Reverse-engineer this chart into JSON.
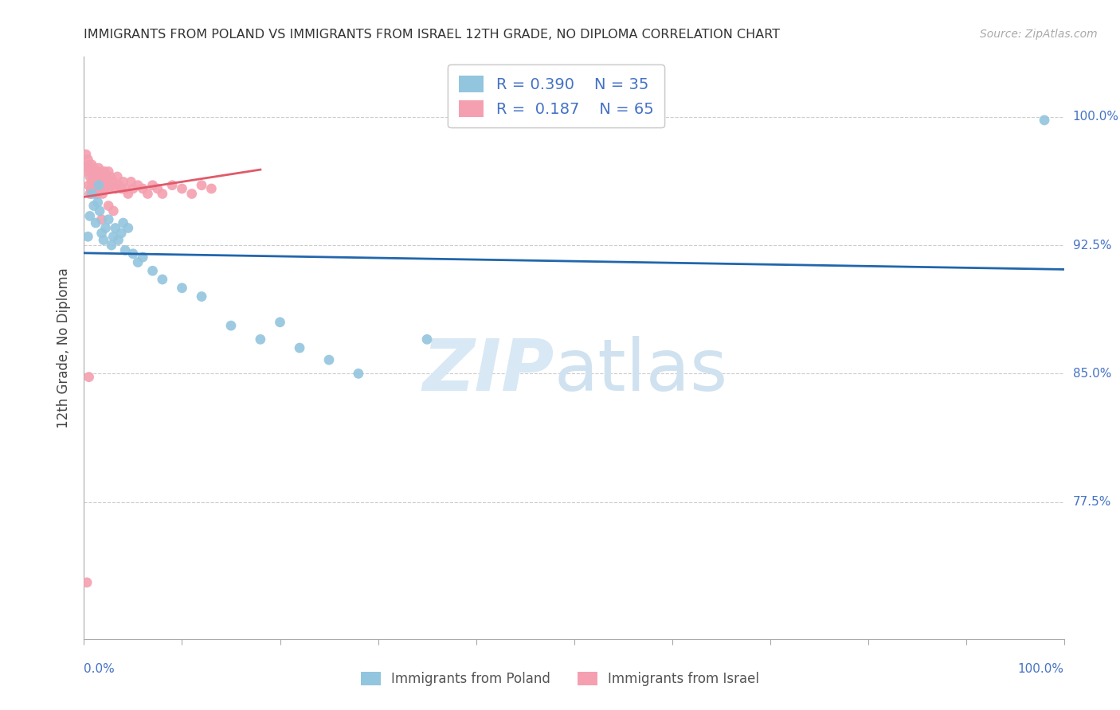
{
  "title": "IMMIGRANTS FROM POLAND VS IMMIGRANTS FROM ISRAEL 12TH GRADE, NO DIPLOMA CORRELATION CHART",
  "source": "Source: ZipAtlas.com",
  "ylabel": "12th Grade, No Diploma",
  "ytick_labels": [
    "100.0%",
    "92.5%",
    "85.0%",
    "77.5%"
  ],
  "ytick_values": [
    1.0,
    0.925,
    0.85,
    0.775
  ],
  "xlim": [
    0.0,
    1.0
  ],
  "ylim": [
    0.695,
    1.035
  ],
  "legend_R_blue": "0.390",
  "legend_N_blue": "35",
  "legend_R_pink": "0.187",
  "legend_N_pink": "65",
  "blue_scatter_color": "#92c5de",
  "pink_scatter_color": "#f4a0b0",
  "blue_line_color": "#2166ac",
  "pink_line_color": "#e05a6a",
  "right_axis_color": "#4472c4",
  "watermark_zip_color": "#d0dff0",
  "watermark_atlas_color": "#c8d8e8",
  "poland_x": [
    0.004,
    0.006,
    0.008,
    0.01,
    0.012,
    0.014,
    0.015,
    0.016,
    0.018,
    0.02,
    0.022,
    0.025,
    0.028,
    0.03,
    0.032,
    0.035,
    0.038,
    0.04,
    0.042,
    0.045,
    0.05,
    0.055,
    0.06,
    0.07,
    0.08,
    0.1,
    0.12,
    0.15,
    0.18,
    0.2,
    0.22,
    0.25,
    0.28,
    0.35,
    0.98
  ],
  "poland_y": [
    0.93,
    0.942,
    0.955,
    0.948,
    0.938,
    0.95,
    0.96,
    0.945,
    0.932,
    0.928,
    0.935,
    0.94,
    0.925,
    0.93,
    0.935,
    0.928,
    0.932,
    0.938,
    0.922,
    0.935,
    0.92,
    0.915,
    0.918,
    0.91,
    0.905,
    0.9,
    0.895,
    0.878,
    0.87,
    0.88,
    0.865,
    0.858,
    0.85,
    0.87,
    0.998
  ],
  "israel_x": [
    0.002,
    0.003,
    0.004,
    0.004,
    0.005,
    0.005,
    0.006,
    0.006,
    0.007,
    0.007,
    0.008,
    0.008,
    0.009,
    0.009,
    0.01,
    0.01,
    0.011,
    0.011,
    0.012,
    0.013,
    0.013,
    0.014,
    0.014,
    0.015,
    0.015,
    0.016,
    0.017,
    0.018,
    0.018,
    0.019,
    0.02,
    0.021,
    0.022,
    0.023,
    0.024,
    0.025,
    0.026,
    0.027,
    0.028,
    0.03,
    0.032,
    0.034,
    0.036,
    0.038,
    0.04,
    0.042,
    0.045,
    0.048,
    0.05,
    0.055,
    0.06,
    0.065,
    0.07,
    0.075,
    0.08,
    0.09,
    0.1,
    0.11,
    0.12,
    0.13,
    0.018,
    0.025,
    0.03,
    0.005,
    0.003
  ],
  "israel_y": [
    0.978,
    0.968,
    0.975,
    0.97,
    0.96,
    0.972,
    0.965,
    0.955,
    0.968,
    0.958,
    0.962,
    0.972,
    0.965,
    0.958,
    0.96,
    0.97,
    0.955,
    0.965,
    0.968,
    0.958,
    0.962,
    0.955,
    0.965,
    0.97,
    0.958,
    0.96,
    0.965,
    0.958,
    0.968,
    0.955,
    0.962,
    0.968,
    0.958,
    0.965,
    0.962,
    0.968,
    0.958,
    0.965,
    0.96,
    0.962,
    0.958,
    0.965,
    0.96,
    0.958,
    0.962,
    0.958,
    0.955,
    0.962,
    0.958,
    0.96,
    0.958,
    0.955,
    0.96,
    0.958,
    0.955,
    0.96,
    0.958,
    0.955,
    0.96,
    0.958,
    0.94,
    0.948,
    0.945,
    0.848,
    0.728
  ]
}
